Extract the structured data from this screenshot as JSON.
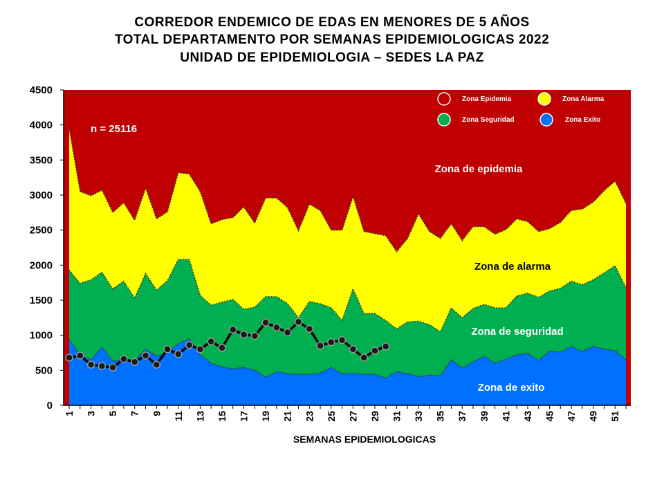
{
  "chart_data": {
    "type": "area",
    "title_lines": [
      "CORREDOR ENDEMICO DE EDAS EN MENORES DE 5 AÑOS",
      "TOTAL DEPARTAMENTO POR SEMANAS EPIDEMIOLOGICAS 2022",
      "UNIDAD DE EPIDEMIOLOGIA – SEDES LA PAZ"
    ],
    "xlabel": "SEMANAS EPIDEMIOLOGICAS",
    "ylabel": "",
    "ylim": [
      0,
      4500
    ],
    "yticks": [
      0,
      500,
      1000,
      1500,
      2000,
      2500,
      3000,
      3500,
      4000,
      4500
    ],
    "xlim": [
      1,
      52
    ],
    "xticks": [
      1,
      3,
      5,
      7,
      9,
      11,
      13,
      15,
      17,
      19,
      21,
      23,
      25,
      27,
      29,
      31,
      33,
      35,
      37,
      39,
      41,
      43,
      45,
      47,
      49,
      51
    ],
    "annotation_n": "n = 25116",
    "zone_labels": {
      "epidemia": "Zona de epidemia",
      "alarma": "Zona de alarma",
      "seguridad": "Zona de  seguridad",
      "exito": "Zona de exito"
    },
    "legend": [
      {
        "label": "Zona Epidemia",
        "color": "#c00000"
      },
      {
        "label": "Zona Alarma",
        "color": "#ffff00"
      },
      {
        "label": "Zona Seguridad",
        "color": "#00b050"
      },
      {
        "label": "Zona Exito",
        "color": "#0070ff"
      }
    ],
    "colors": {
      "epidemia": "#c00000",
      "alarma": "#ffff00",
      "seguridad": "#00b050",
      "exito": "#0070ff",
      "observed": "#000000"
    },
    "weeks": [
      1,
      2,
      3,
      4,
      5,
      6,
      7,
      8,
      9,
      10,
      11,
      12,
      13,
      14,
      15,
      16,
      17,
      18,
      19,
      20,
      21,
      22,
      23,
      24,
      25,
      26,
      27,
      28,
      29,
      30,
      31,
      32,
      33,
      34,
      35,
      36,
      37,
      38,
      39,
      40,
      41,
      42,
      43,
      44,
      45,
      46,
      47,
      48,
      49,
      50,
      51,
      52
    ],
    "series": [
      {
        "key": "alarma_upper",
        "values": [
          3950,
          3050,
          2990,
          3070,
          2750,
          2890,
          2640,
          3100,
          2660,
          2760,
          3320,
          3300,
          3050,
          2590,
          2650,
          2680,
          2830,
          2600,
          2960,
          2960,
          2820,
          2490,
          2870,
          2780,
          2500,
          2500,
          2980,
          2480,
          2450,
          2420,
          2190,
          2380,
          2730,
          2480,
          2380,
          2590,
          2350,
          2550,
          2550,
          2440,
          2510,
          2660,
          2620,
          2480,
          2520,
          2610,
          2780,
          2800,
          2900,
          3060,
          3200,
          2880
        ]
      },
      {
        "key": "seguridad_upper",
        "values": [
          1930,
          1740,
          1790,
          1900,
          1660,
          1770,
          1530,
          1880,
          1640,
          1780,
          2080,
          2080,
          1570,
          1430,
          1470,
          1510,
          1370,
          1400,
          1550,
          1550,
          1450,
          1250,
          1480,
          1450,
          1390,
          1210,
          1660,
          1310,
          1310,
          1210,
          1090,
          1190,
          1200,
          1150,
          1050,
          1390,
          1250,
          1380,
          1440,
          1390,
          1390,
          1560,
          1600,
          1540,
          1630,
          1670,
          1770,
          1720,
          1790,
          1890,
          1990,
          1680
        ]
      },
      {
        "key": "exito_upper",
        "values": [
          940,
          720,
          650,
          830,
          630,
          660,
          640,
          800,
          700,
          750,
          880,
          950,
          720,
          600,
          550,
          520,
          540,
          500,
          400,
          480,
          450,
          440,
          440,
          460,
          540,
          450,
          460,
          440,
          440,
          390,
          480,
          450,
          410,
          430,
          420,
          650,
          530,
          620,
          700,
          600,
          660,
          720,
          740,
          640,
          770,
          760,
          840,
          770,
          840,
          800,
          780,
          650
        ]
      },
      {
        "key": "observed",
        "name": "",
        "values": [
          680,
          710,
          580,
          560,
          540,
          660,
          620,
          710,
          580,
          800,
          730,
          860,
          800,
          910,
          820,
          1080,
          1010,
          990,
          1180,
          1110,
          1040,
          1190,
          1090,
          850,
          900,
          930,
          800,
          680,
          780,
          840
        ]
      }
    ]
  }
}
